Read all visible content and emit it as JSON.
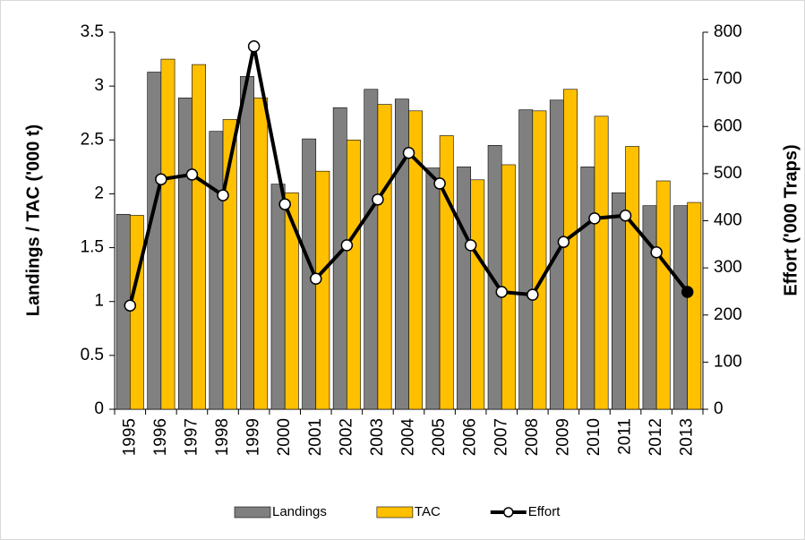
{
  "chart_data": {
    "type": "bar_line",
    "categories": [
      "1995",
      "1996",
      "1997",
      "1998",
      "1999",
      "2000",
      "2001",
      "2002",
      "2003",
      "2004",
      "2005",
      "2006",
      "2007",
      "2008",
      "2009",
      "2010",
      "2011",
      "2012",
      "2013"
    ],
    "y_label": "Landings / TAC ('000 t)",
    "y2_label": "Effort ('000 Traps)",
    "series": [
      {
        "name": "Landings",
        "color": "#808080",
        "type": "bar",
        "values": [
          1.81,
          3.13,
          2.89,
          2.58,
          3.09,
          2.09,
          2.51,
          2.8,
          2.97,
          2.88,
          2.24,
          2.25,
          2.45,
          2.78,
          2.87,
          2.25,
          2.01,
          1.89,
          1.89
        ]
      },
      {
        "name": "TAC",
        "color": "#ffc000",
        "type": "bar",
        "values": [
          1.8,
          3.25,
          3.2,
          2.69,
          2.89,
          2.01,
          2.21,
          2.5,
          2.83,
          2.77,
          2.54,
          2.13,
          2.27,
          2.77,
          2.97,
          2.72,
          2.44,
          2.12,
          1.92
        ]
      },
      {
        "name": "Effort",
        "color": "#000000",
        "type": "line",
        "axis": "y2",
        "values": [
          220,
          488,
          498,
          454,
          770,
          435,
          277,
          348,
          445,
          544,
          479,
          348,
          249,
          243,
          355,
          405,
          411,
          333,
          249
        ]
      }
    ],
    "ylim": [
      0,
      3.5
    ],
    "yticks": [
      0,
      0.5,
      1,
      1.5,
      2,
      2.5,
      3,
      3.5
    ],
    "y2lim": [
      0,
      800
    ],
    "y2ticks": [
      0,
      100,
      200,
      300,
      400,
      500,
      600,
      700,
      800
    ],
    "legend": "bottom"
  }
}
